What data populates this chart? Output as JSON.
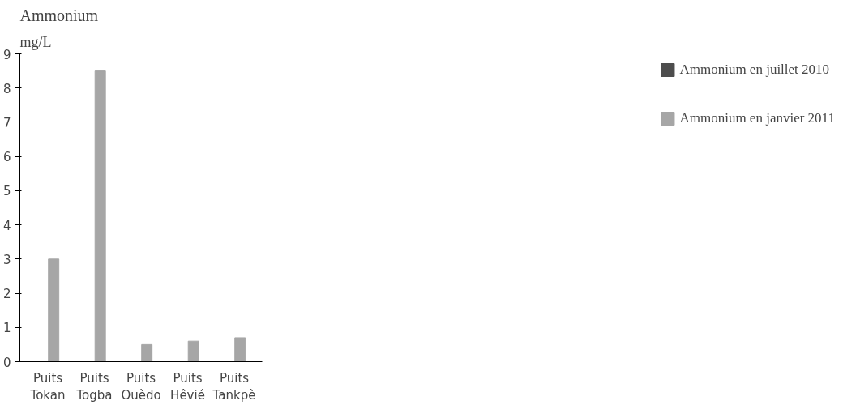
{
  "chart_data": {
    "type": "bar",
    "title": "Ammonium",
    "ylabel": "mg/L",
    "categories": [
      "Puits\nTokan",
      "Puits\nTogba",
      "Puits\nOuèdo",
      "Puits\nHêvié",
      "Puits\nTankpè"
    ],
    "series": [
      {
        "name": "Ammonium en juillet 2010",
        "color": "#4d4d4d",
        "values": [
          0,
          0,
          0,
          0,
          0
        ]
      },
      {
        "name": "Ammonium en janvier 2011",
        "color": "#a6a6a6",
        "values": [
          3.0,
          8.5,
          0.5,
          0.6,
          0.7
        ]
      }
    ],
    "ylim": [
      0,
      9
    ],
    "yticks": [
      0,
      1,
      2,
      3,
      4,
      5,
      6,
      7,
      8,
      9
    ],
    "grid": false,
    "legend": "right"
  }
}
